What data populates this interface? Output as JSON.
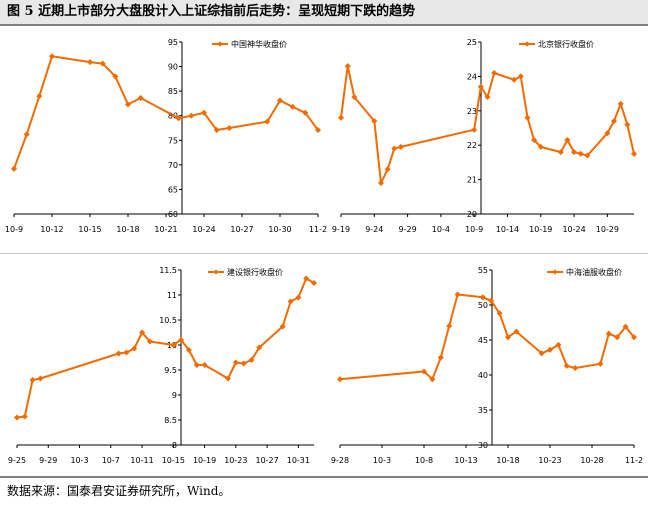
{
  "figure": {
    "title": "图 5  近期上市部分大盘股计入上证综指前后走势：呈现短期下跌的趋势",
    "source": "数据来源：国泰君安证券研究所，Wind。"
  },
  "colors": {
    "series": "#f26b00",
    "axis": "#000000",
    "title_bg": "#e8e8e8",
    "rule": "#7f7f7f"
  },
  "chart_data": [
    {
      "type": "line",
      "series": [
        {
          "name": "中国神华收盘价"
        }
      ],
      "ylim": [
        60,
        95
      ],
      "yticks": [
        "95",
        "90",
        "85",
        "80",
        "75",
        "70",
        "65",
        "60"
      ],
      "xticks": [
        "10-9",
        "10-12",
        "10-15",
        "10-18",
        "10-21",
        "10-24",
        "10-27",
        "10-30",
        "11-2"
      ],
      "points": [
        [
          "10-9",
          69.2
        ],
        [
          "10-10",
          76.2
        ],
        [
          "10-11",
          84.0
        ],
        [
          "10-12",
          92.1
        ],
        [
          "10-15",
          90.9
        ],
        [
          "10-16",
          90.6
        ],
        [
          "10-17",
          88.0
        ],
        [
          "10-18",
          82.3
        ],
        [
          "10-19",
          83.6
        ],
        [
          "10-22",
          79.5
        ],
        [
          "10-23",
          80.0
        ],
        [
          "10-24",
          80.6
        ],
        [
          "10-25",
          77.1
        ],
        [
          "10-26",
          77.5
        ],
        [
          "10-29",
          78.8
        ],
        [
          "10-30",
          83.1
        ],
        [
          "10-31",
          81.8
        ],
        [
          "11-1",
          80.6
        ],
        [
          "11-2",
          77.1
        ]
      ]
    },
    {
      "type": "line",
      "series": [
        {
          "name": "北京银行收盘价"
        }
      ],
      "ylim": [
        20,
        25
      ],
      "yticks": [
        "25",
        "24",
        "23",
        "22",
        "21",
        "20"
      ],
      "xticks": [
        "9-19",
        "9-24",
        "9-29",
        "10-4",
        "10-9",
        "10-14",
        "10-19",
        "10-24",
        "10-29"
      ],
      "points": [
        [
          "9-19",
          22.8
        ],
        [
          "9-20",
          24.3
        ],
        [
          "9-21",
          23.4
        ],
        [
          "9-24",
          22.7
        ],
        [
          "9-25",
          20.9
        ],
        [
          "9-26",
          21.3
        ],
        [
          "9-27",
          21.9
        ],
        [
          "9-28",
          21.95
        ],
        [
          "10-9",
          22.45
        ],
        [
          "10-10",
          23.7
        ],
        [
          "10-11",
          23.4
        ],
        [
          "10-12",
          24.1
        ],
        [
          "10-15",
          23.9
        ],
        [
          "10-16",
          24.0
        ],
        [
          "10-17",
          22.8
        ],
        [
          "10-18",
          22.15
        ],
        [
          "10-19",
          21.95
        ],
        [
          "10-22",
          21.8
        ],
        [
          "10-23",
          22.15
        ],
        [
          "10-24",
          21.8
        ],
        [
          "10-25",
          21.75
        ],
        [
          "10-26",
          21.7
        ],
        [
          "10-29",
          22.35
        ],
        [
          "10-30",
          22.7
        ],
        [
          "10-31",
          23.2
        ],
        [
          "11-1",
          22.6
        ],
        [
          "11-2",
          21.75
        ]
      ]
    },
    {
      "type": "line",
      "series": [
        {
          "name": "建设银行收盘价"
        }
      ],
      "ylim": [
        8,
        11.5
      ],
      "yticks": [
        "11.5",
        "11",
        "10.5",
        "10",
        "9.5",
        "9",
        "8.5",
        "8"
      ],
      "xticks": [
        "9-25",
        "9-29",
        "10-3",
        "10-7",
        "10-11",
        "10-15",
        "10-19",
        "10-23",
        "10-27",
        "10-31"
      ],
      "points": [
        [
          "9-25",
          8.55
        ],
        [
          "9-26",
          8.57
        ],
        [
          "9-27",
          9.3
        ],
        [
          "9-28",
          9.33
        ],
        [
          "10-8",
          9.83
        ],
        [
          "10-9",
          9.85
        ],
        [
          "10-10",
          9.93
        ],
        [
          "10-11",
          10.25
        ],
        [
          "10-12",
          10.07
        ],
        [
          "10-15",
          10.0
        ],
        [
          "10-16",
          10.1
        ],
        [
          "10-17",
          9.9
        ],
        [
          "10-18",
          9.6
        ],
        [
          "10-19",
          9.6
        ],
        [
          "10-22",
          9.33
        ],
        [
          "10-23",
          9.65
        ],
        [
          "10-24",
          9.63
        ],
        [
          "10-25",
          9.7
        ],
        [
          "10-26",
          9.95
        ],
        [
          "10-29",
          10.37
        ],
        [
          "10-30",
          10.87
        ],
        [
          "10-31",
          10.95
        ],
        [
          "11-1",
          11.33
        ],
        [
          "11-2",
          11.24
        ]
      ]
    },
    {
      "type": "line",
      "series": [
        {
          "name": "中海油服收盘价"
        }
      ],
      "ylim": [
        30,
        55
      ],
      "yticks": [
        "55",
        "50",
        "45",
        "40",
        "35",
        "30"
      ],
      "xticks": [
        "9-28",
        "10-3",
        "10-8",
        "10-13",
        "10-18",
        "10-23",
        "10-28",
        "11-2"
      ],
      "points": [
        [
          "9-28",
          39.4
        ],
        [
          "10-8",
          40.5
        ],
        [
          "10-9",
          39.4
        ],
        [
          "10-10",
          42.5
        ],
        [
          "10-11",
          47.0
        ],
        [
          "10-12",
          51.5
        ],
        [
          "10-15",
          51.1
        ],
        [
          "10-16",
          50.6
        ],
        [
          "10-17",
          48.8
        ],
        [
          "10-18",
          45.4
        ],
        [
          "10-19",
          46.2
        ],
        [
          "10-22",
          43.1
        ],
        [
          "10-23",
          43.6
        ],
        [
          "10-24",
          44.3
        ],
        [
          "10-25",
          41.3
        ],
        [
          "10-26",
          41.0
        ],
        [
          "10-29",
          41.6
        ],
        [
          "10-30",
          45.9
        ],
        [
          "10-31",
          45.4
        ],
        [
          "11-1",
          46.9
        ],
        [
          "11-2",
          45.4
        ]
      ]
    }
  ]
}
